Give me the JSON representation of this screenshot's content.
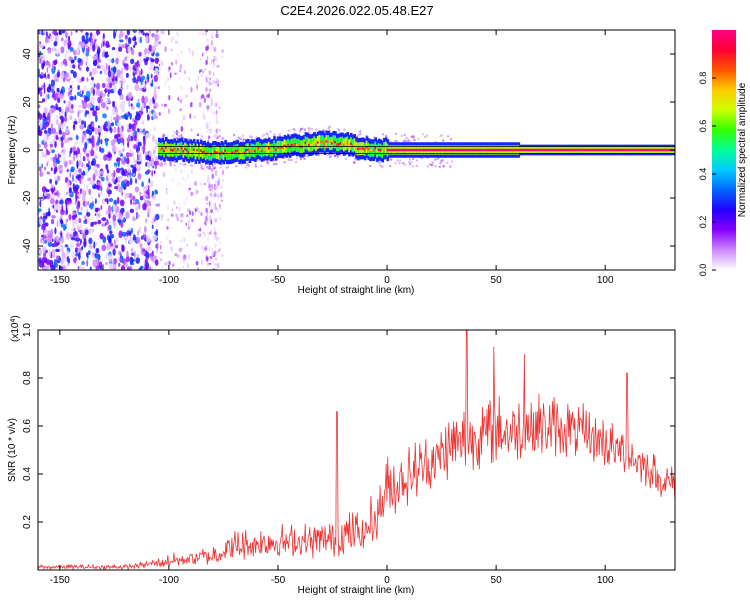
{
  "title": "C2E4.2026.022.05.48.E27",
  "chart_data": [
    {
      "type": "heatmap",
      "name": "spectrogram",
      "xlabel": "Height of straight line (km)",
      "ylabel": "Frequency (Hz)",
      "xlim": [
        -160,
        132
      ],
      "ylim": [
        -50,
        50
      ],
      "xticks": [
        -150,
        -100,
        -50,
        0,
        50,
        100
      ],
      "yticks": [
        -40,
        -20,
        0,
        20,
        40
      ],
      "x_tick_labels": [
        "-150",
        "-100",
        "-50",
        "0",
        "50",
        "100"
      ],
      "y_tick_labels": [
        "-40",
        "-20",
        "0",
        "20",
        "40"
      ],
      "noise_region_km": [
        -160,
        -105
      ],
      "sparse_region_km": [
        -105,
        -75
      ],
      "signal_start_km": -105,
      "ridge": {
        "x": [
          -105,
          -95,
          -85,
          -75,
          -65,
          -55,
          -45,
          -35,
          -30,
          -25,
          -20,
          -15,
          -10,
          -5,
          0,
          10,
          30,
          60,
          100,
          132
        ],
        "freq_hz": [
          0.5,
          0,
          -1,
          -1,
          -0.5,
          0.5,
          1.5,
          2.5,
          3,
          3,
          2.5,
          1.5,
          0.5,
          0,
          0,
          0,
          0,
          0,
          0,
          0
        ]
      },
      "horizontal_lines_hz": [
        1.5,
        -1.5
      ]
    },
    {
      "type": "colorbar",
      "name": "amplitude-colorbar",
      "label": "Normalized spectral amplitude",
      "range": [
        0,
        1
      ],
      "ticks": [
        0.0,
        0.2,
        0.4,
        0.6,
        0.8
      ],
      "tick_labels": [
        "0.0",
        "0.2",
        "0.4",
        "0.6",
        "0.8"
      ],
      "colors": [
        "#ffffff",
        "#cc88ff",
        "#8800ff",
        "#2200ff",
        "#0066ff",
        "#00ccff",
        "#00ff99",
        "#33ff00",
        "#ccff00",
        "#ffcc00",
        "#ff5500",
        "#ff0033",
        "#ff0088"
      ]
    },
    {
      "type": "line",
      "name": "snr",
      "xlabel": "Height of straight line (km)",
      "ylabel": "SNR (10 * v/v)",
      "multiplier": "(x10",
      "multiplier_exp": "4",
      "multiplier_close": ")",
      "xlim": [
        -160,
        132
      ],
      "ylim": [
        0,
        1.0
      ],
      "xticks": [
        -150,
        -100,
        -50,
        0,
        50,
        100
      ],
      "yticks": [
        0.2,
        0.4,
        0.6,
        0.8,
        1.0
      ],
      "x_tick_labels": [
        "-150",
        "-100",
        "-50",
        "0",
        "50",
        "100"
      ],
      "y_tick_labels": [
        "0.2",
        "0.4",
        "0.6",
        "0.8",
        "1.0"
      ],
      "color": "#ee3333",
      "envelope": {
        "x": [
          -160,
          -140,
          -120,
          -110,
          -100,
          -90,
          -80,
          -70,
          -60,
          -50,
          -40,
          -30,
          -20,
          -10,
          -5,
          0,
          10,
          20,
          30,
          40,
          50,
          60,
          70,
          80,
          90,
          100,
          110,
          120,
          125,
          132
        ],
        "base": [
          0.01,
          0.01,
          0.01,
          0.02,
          0.03,
          0.04,
          0.05,
          0.08,
          0.09,
          0.1,
          0.1,
          0.1,
          0.12,
          0.14,
          0.2,
          0.3,
          0.36,
          0.42,
          0.48,
          0.52,
          0.54,
          0.55,
          0.56,
          0.56,
          0.54,
          0.5,
          0.46,
          0.4,
          0.36,
          0.34
        ],
        "amplitude": [
          0.02,
          0.02,
          0.02,
          0.03,
          0.06,
          0.07,
          0.09,
          0.14,
          0.14,
          0.15,
          0.15,
          0.16,
          0.18,
          0.2,
          0.24,
          0.28,
          0.26,
          0.26,
          0.28,
          0.32,
          0.3,
          0.3,
          0.28,
          0.26,
          0.24,
          0.22,
          0.2,
          0.18,
          0.16,
          0.14
        ]
      },
      "peaks": [
        {
          "x": -23,
          "y": 0.66
        },
        {
          "x": 36.5,
          "y": 1.0
        },
        {
          "x": 49,
          "y": 0.93
        },
        {
          "x": 63,
          "y": 0.9
        },
        {
          "x": 110,
          "y": 0.82
        }
      ]
    }
  ]
}
